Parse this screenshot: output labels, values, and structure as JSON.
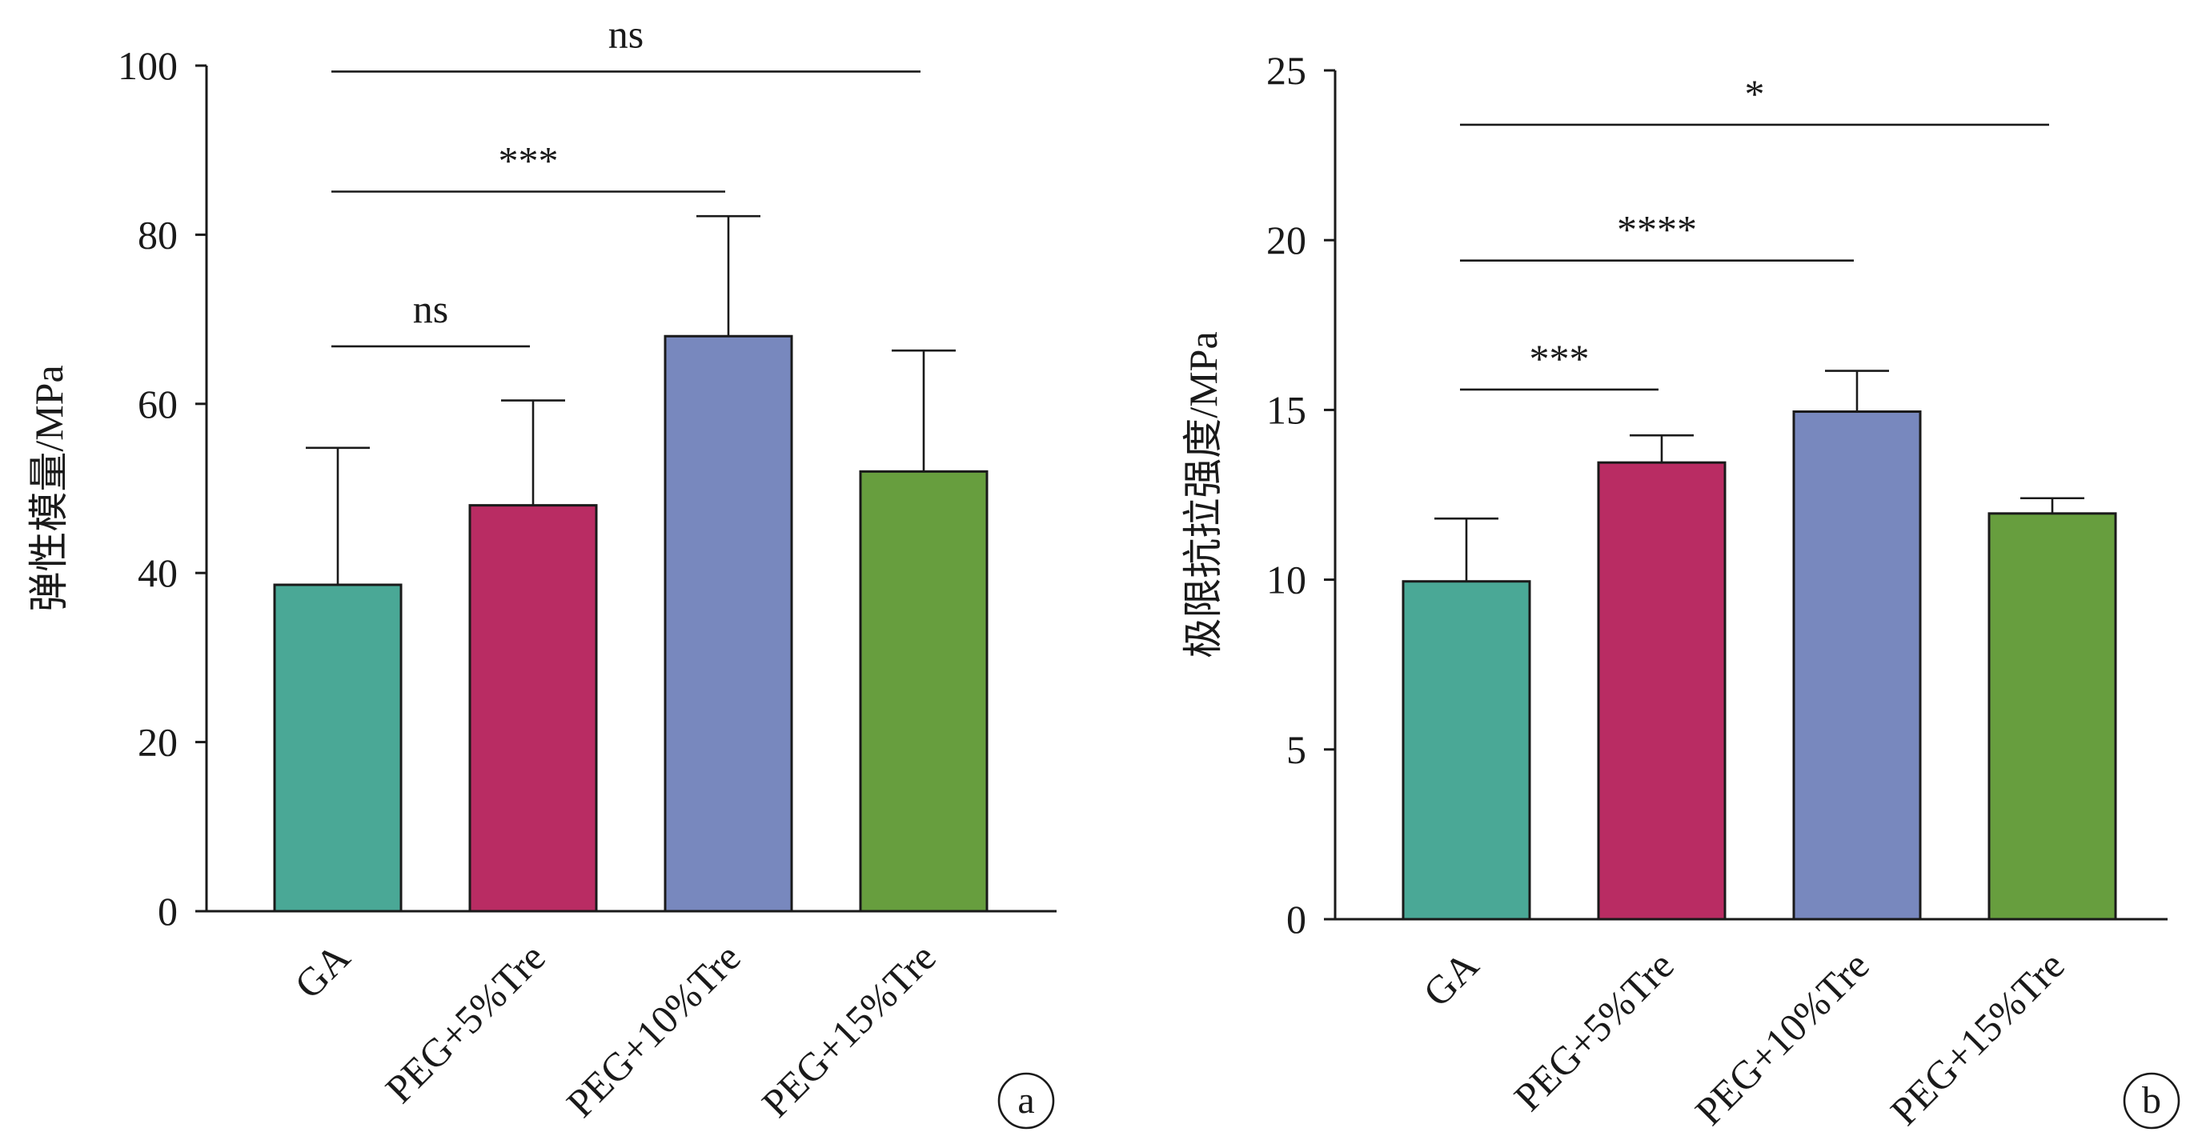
{
  "chart_data": [
    {
      "panel_label": "a",
      "type": "bar",
      "ylabel": "弹性模量/MPa",
      "ylim": [
        0,
        100
      ],
      "yticks": [
        0,
        20,
        40,
        60,
        80,
        100
      ],
      "categories": [
        "GA",
        "PEG+5%Tre",
        "PEG+10%Tre",
        "PEG+15%Tre"
      ],
      "values": [
        38.6,
        48.0,
        68.0,
        52.0
      ],
      "error_upper": [
        54.8,
        60.4,
        82.2,
        66.3
      ],
      "colors": [
        "#4aa896",
        "#b92c63",
        "#7888be",
        "#679e3e"
      ],
      "significance": [
        {
          "from": 0,
          "to": 1,
          "label": "ns",
          "y": 66.8
        },
        {
          "from": 0,
          "to": 2,
          "label": "***",
          "y": 85.1
        },
        {
          "from": 0,
          "to": 3,
          "label": "ns",
          "y": 99.3
        }
      ],
      "grid": false,
      "legend": "none"
    },
    {
      "panel_label": "b",
      "type": "bar",
      "ylabel": "极限抗拉强度/MPa",
      "ylim": [
        0,
        25
      ],
      "yticks": [
        0,
        5,
        10,
        15,
        20,
        25
      ],
      "categories": [
        "GA",
        "PEG+5%Tre",
        "PEG+10%Tre",
        "PEG+15%Tre"
      ],
      "values": [
        9.95,
        13.45,
        14.95,
        11.95
      ],
      "error_upper": [
        11.8,
        14.25,
        16.15,
        12.4
      ],
      "colors": [
        "#4aa896",
        "#b92c63",
        "#7888be",
        "#679e3e"
      ],
      "significance": [
        {
          "from": 0,
          "to": 1,
          "label": "***",
          "y": 15.6
        },
        {
          "from": 0,
          "to": 2,
          "label": "****",
          "y": 19.4
        },
        {
          "from": 0,
          "to": 3,
          "label": "*",
          "y": 23.4
        }
      ],
      "grid": false,
      "legend": "none"
    }
  ]
}
